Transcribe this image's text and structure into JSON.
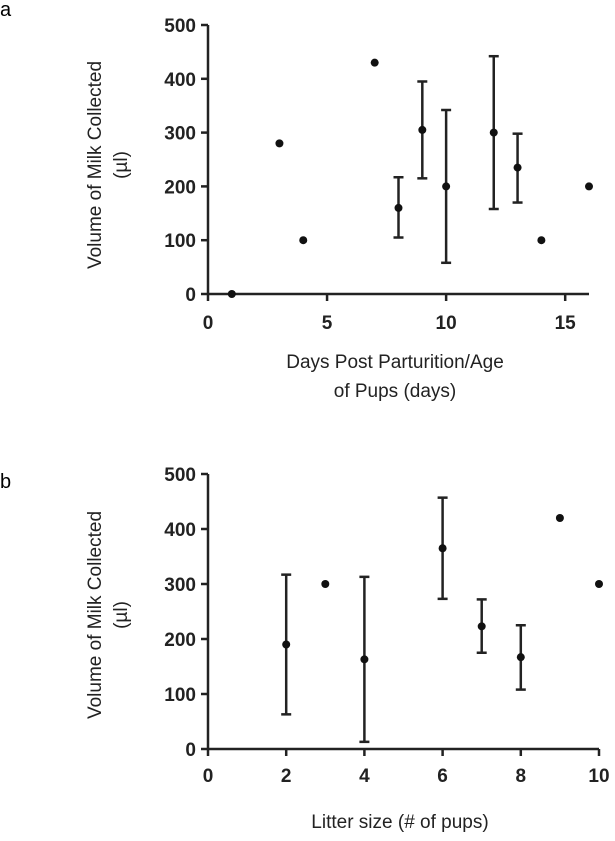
{
  "chart_data": [
    {
      "panel_label": "a",
      "type": "scatter",
      "xlabel_lines": [
        "Days Post Parturition/Age",
        "of Pups (days)"
      ],
      "ylabel_lines": [
        "Volume of Milk Collected",
        "(µl)"
      ],
      "xlim": [
        0,
        16
      ],
      "ylim": [
        0,
        500
      ],
      "xticks": [
        0,
        5,
        10,
        15
      ],
      "yticks": [
        0,
        100,
        200,
        300,
        400,
        500
      ],
      "points": [
        {
          "x": 1,
          "y": 0
        },
        {
          "x": 3,
          "y": 280
        },
        {
          "x": 4,
          "y": 100
        },
        {
          "x": 7,
          "y": 430
        },
        {
          "x": 8,
          "y": 160,
          "err_low": 105,
          "err_high": 217
        },
        {
          "x": 9,
          "y": 305,
          "err_low": 215,
          "err_high": 395
        },
        {
          "x": 10,
          "y": 200,
          "err_low": 58,
          "err_high": 342
        },
        {
          "x": 12,
          "y": 300,
          "err_low": 158,
          "err_high": 442
        },
        {
          "x": 13,
          "y": 235,
          "err_low": 170,
          "err_high": 298
        },
        {
          "x": 14,
          "y": 100
        },
        {
          "x": 16,
          "y": 200
        }
      ]
    },
    {
      "panel_label": "b",
      "type": "scatter",
      "xlabel_lines": [
        "Litter size (# of pups)"
      ],
      "ylabel_lines": [
        "Volume of Milk Collected",
        "(µl)"
      ],
      "xlim": [
        0,
        10
      ],
      "ylim": [
        0,
        500
      ],
      "xticks": [
        0,
        2,
        4,
        6,
        8,
        10
      ],
      "yticks": [
        0,
        100,
        200,
        300,
        400,
        500
      ],
      "points": [
        {
          "x": 2,
          "y": 190,
          "err_low": 63,
          "err_high": 317
        },
        {
          "x": 3,
          "y": 300
        },
        {
          "x": 4,
          "y": 163,
          "err_low": 13,
          "err_high": 313
        },
        {
          "x": 6,
          "y": 365,
          "err_low": 273,
          "err_high": 457
        },
        {
          "x": 7,
          "y": 223,
          "err_low": 175,
          "err_high": 272
        },
        {
          "x": 8,
          "y": 167,
          "err_low": 108,
          "err_high": 225
        },
        {
          "x": 9,
          "y": 420
        },
        {
          "x": 10,
          "y": 300
        }
      ]
    }
  ]
}
